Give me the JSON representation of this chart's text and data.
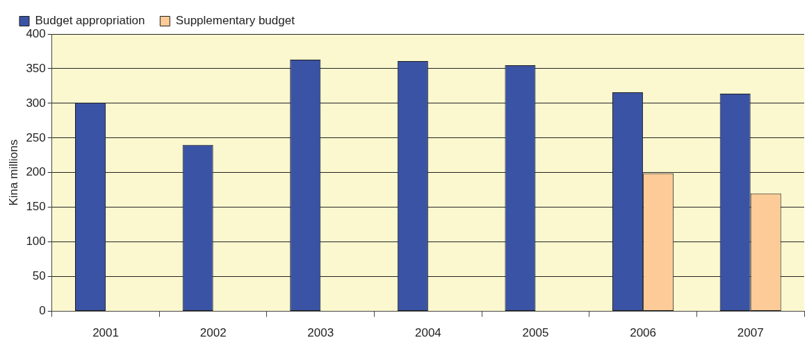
{
  "chart_data": {
    "type": "bar",
    "ylabel": "Kina millions",
    "categories": [
      "2001",
      "2002",
      "2003",
      "2004",
      "2005",
      "2006",
      "2007"
    ],
    "series": [
      {
        "name": "Budget appropriation",
        "color": "#3a53a4",
        "values": [
          301,
          240,
          363,
          361,
          355,
          316,
          314
        ]
      },
      {
        "name": "Supplementary budget",
        "color": "#fdcb97",
        "values": [
          null,
          null,
          null,
          null,
          null,
          199,
          170
        ]
      }
    ],
    "ylim": [
      0,
      400
    ],
    "yticks": [
      0,
      50,
      100,
      150,
      200,
      250,
      300,
      350,
      400
    ],
    "grid": "y",
    "legend": "top left"
  }
}
